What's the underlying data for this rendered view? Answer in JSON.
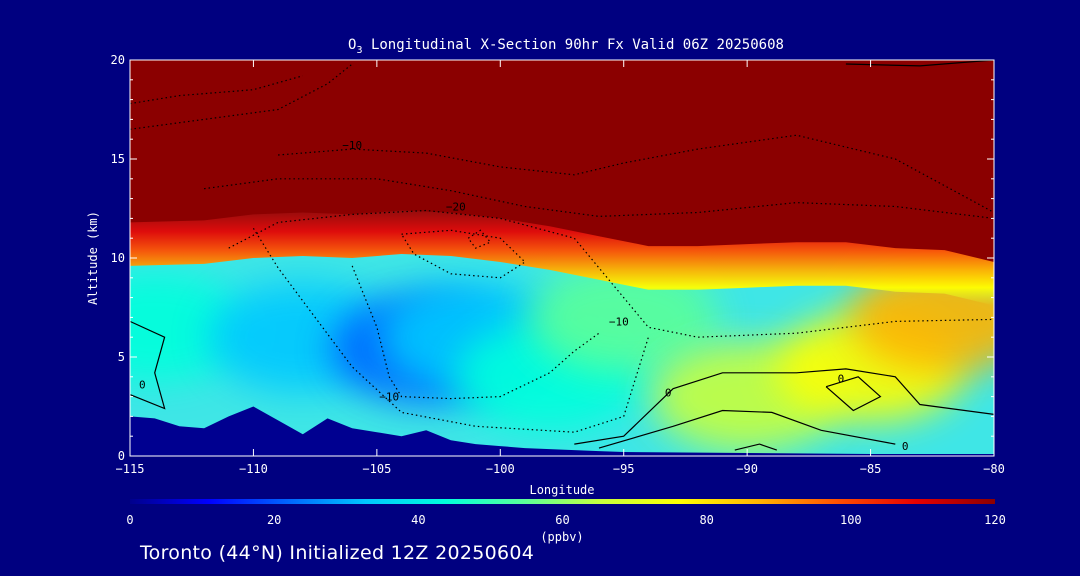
{
  "chart_data": {
    "type": "heatmap",
    "title": {
      "prefix": "O",
      "subscript": "3",
      "rest": " Longitudinal X-Section 90hr  Fx Valid 06Z 20250608"
    },
    "xlabel": "Longitude",
    "ylabel": "Altitude (km)",
    "xlim": [
      -115,
      -80
    ],
    "ylim": [
      0,
      20
    ],
    "x_ticks": [
      -115,
      -110,
      -105,
      -100,
      -95,
      -90,
      -85,
      -80
    ],
    "x_tick_labels": [
      "−115",
      "−110",
      "−105",
      "−100",
      "−95",
      "−90",
      "−85",
      "−80"
    ],
    "y_ticks": [
      0,
      5,
      10,
      15,
      20
    ],
    "y_tick_labels": [
      "0",
      "5",
      "10",
      "15",
      "20"
    ],
    "colorbar": {
      "label": "(ppbv)",
      "range": [
        0,
        120
      ],
      "ticks": [
        0,
        20,
        40,
        60,
        80,
        100,
        120
      ],
      "tick_labels": [
        "0",
        "20",
        "40",
        "60",
        "80",
        "100",
        "120"
      ],
      "colors": [
        "#00008c",
        "#0000ff",
        "#0064ff",
        "#00c8ff",
        "#00ffdc",
        "#5aff9a",
        "#c8ff3c",
        "#ffff00",
        "#ffb400",
        "#ff5000",
        "#e60000",
        "#8b0000"
      ]
    },
    "terrain_profile": {
      "lon": [
        -115,
        -114,
        -113,
        -112,
        -111,
        -110,
        -109,
        -108,
        -107,
        -106,
        -105,
        -104,
        -103,
        -102,
        -101,
        -100,
        -99,
        -98,
        -97,
        -96,
        -95,
        -90,
        -85,
        -80
      ],
      "alt": [
        2.0,
        1.9,
        1.5,
        1.4,
        2.0,
        2.5,
        1.8,
        1.1,
        1.9,
        1.4,
        1.2,
        1.0,
        1.3,
        0.8,
        0.6,
        0.5,
        0.4,
        0.35,
        0.3,
        0.25,
        0.2,
        0.15,
        0.1,
        0.1
      ]
    },
    "tropopause_profile": {
      "lon": [
        -115,
        -112,
        -110,
        -108,
        -106,
        -104,
        -102,
        -100,
        -98,
        -96,
        -94,
        -92,
        -90,
        -88,
        -86,
        -84,
        -82,
        -80
      ],
      "alt": [
        11.8,
        11.9,
        12.2,
        12.3,
        12.2,
        12.4,
        12.3,
        12.0,
        11.6,
        11.1,
        10.6,
        10.6,
        10.7,
        10.8,
        10.8,
        10.5,
        10.4,
        9.8
      ]
    },
    "ozone_regions": [
      {
        "lon": -114.0,
        "alt": 6.5,
        "ppbv": 48
      },
      {
        "lon": -108.0,
        "alt": 6.0,
        "ppbv": 38
      },
      {
        "lon": -103.0,
        "alt": 5.4,
        "ppbv": 25
      },
      {
        "lon": -101.0,
        "alt": 6.0,
        "ppbv": 30
      },
      {
        "lon": -98.0,
        "alt": 4.0,
        "ppbv": 45
      },
      {
        "lon": -95.0,
        "alt": 7.0,
        "ppbv": 55
      },
      {
        "lon": -90.0,
        "alt": 3.0,
        "ppbv": 70
      },
      {
        "lon": -85.0,
        "alt": 4.5,
        "ppbv": 72
      },
      {
        "lon": -82.0,
        "alt": 7.0,
        "ppbv": 90
      }
    ],
    "contour_labels": [
      {
        "text": "0",
        "lon": -114.5,
        "alt": 3.4
      },
      {
        "text": "−10",
        "lon": -106.0,
        "alt": 15.5
      },
      {
        "text": "−20",
        "lon": -101.8,
        "alt": 12.4
      },
      {
        "text": "−10",
        "lon": -95.2,
        "alt": 6.6
      },
      {
        "text": "−10",
        "lon": -104.5,
        "alt": 2.8
      },
      {
        "text": "0",
        "lon": -93.2,
        "alt": 3.0
      },
      {
        "text": "0",
        "lon": -86.2,
        "alt": 3.7
      },
      {
        "text": "0",
        "lon": -83.6,
        "alt": 0.3
      }
    ]
  },
  "footer": "Toronto (44°N) Initialized 12Z 20250604"
}
